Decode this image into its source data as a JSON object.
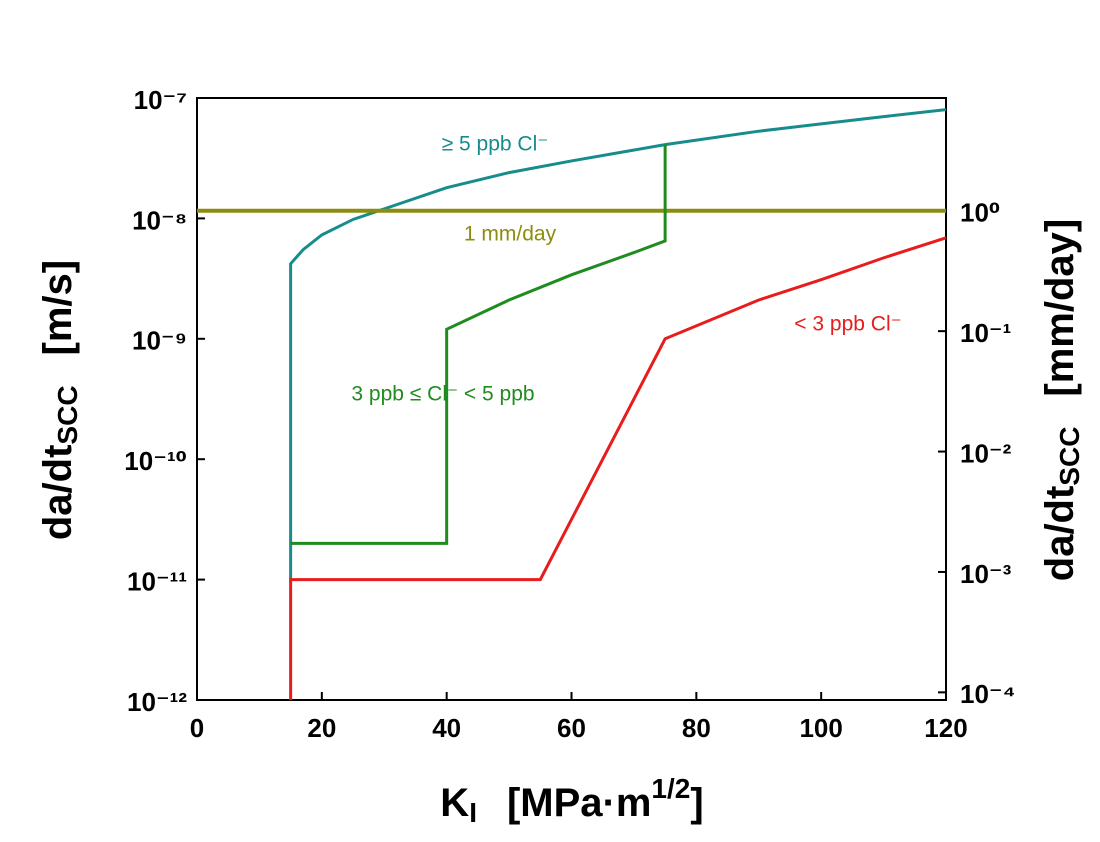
{
  "chart_data": {
    "type": "line",
    "xlabel": {
      "main": "K",
      "sub": "I",
      "unit": "[MPa·m",
      "sup": "1/2",
      "close": "]"
    },
    "ylabel": {
      "main": "da/dt",
      "sub": "SCC",
      "unit": "[m/s]"
    },
    "y2label": {
      "main": "da/dt",
      "sub": "SCC",
      "unit": "[mm/day]"
    },
    "xlim": [
      0,
      120
    ],
    "xticks": [
      0,
      20,
      40,
      60,
      80,
      100,
      120
    ],
    "ylim": [
      1e-12,
      1e-07
    ],
    "ylog": true,
    "yticks": [
      {
        "value": 1e-12,
        "label": "10⁻¹²"
      },
      {
        "value": 1e-11,
        "label": "10⁻¹¹"
      },
      {
        "value": 1e-10,
        "label": "10⁻¹⁰"
      },
      {
        "value": 1e-09,
        "label": "10⁻⁹"
      },
      {
        "value": 1e-08,
        "label": "10⁻⁸"
      },
      {
        "value": 1e-07,
        "label": "10⁻⁷"
      }
    ],
    "y2lim": [
      8.64e-05,
      8.64
    ],
    "y2log": true,
    "y2ticks": [
      {
        "value": 0.0001,
        "label": "10⁻⁴"
      },
      {
        "value": 0.001,
        "label": "10⁻³"
      },
      {
        "value": 0.01,
        "label": "10⁻²"
      },
      {
        "value": 0.1,
        "label": "10⁻¹"
      },
      {
        "value": 1,
        "label": "10⁰"
      }
    ],
    "series": [
      {
        "name": "≥ 5 ppb Cl⁻",
        "color": "#178c8c",
        "x": [
          15,
          15,
          17,
          20,
          25,
          30,
          40,
          50,
          60,
          75,
          90,
          100,
          110,
          120
        ],
        "values": [
          1e-11,
          4.2e-09,
          5.5e-09,
          7.3e-09,
          9.8e-09,
          1.2e-08,
          1.8e-08,
          2.4e-08,
          3e-08,
          4.1e-08,
          5.3e-08,
          6.1e-08,
          7e-08,
          8e-08
        ]
      },
      {
        "name": "1 mm/day",
        "color": "#8c8c0f",
        "axis": "y2",
        "x": [
          0,
          120
        ],
        "values": [
          1,
          1
        ]
      },
      {
        "name": "3 ppb ≤  Cl⁻ < 5 ppb",
        "color": "#1e8c1e",
        "x": [
          15,
          40,
          40,
          50,
          60,
          70,
          75,
          75
        ],
        "values": [
          2e-11,
          2e-11,
          1.2e-09,
          2.1e-09,
          3.4e-09,
          5.2e-09,
          6.5e-09,
          4.1e-08
        ]
      },
      {
        "name": "< 3 ppb Cl⁻",
        "color": "#e81c1c",
        "x": [
          15,
          15,
          55,
          75,
          90,
          100,
          110,
          120
        ],
        "values": [
          1e-12,
          1e-11,
          1e-11,
          1e-09,
          2.1e-09,
          3.1e-09,
          4.7e-09,
          6.9e-09
        ]
      }
    ]
  }
}
